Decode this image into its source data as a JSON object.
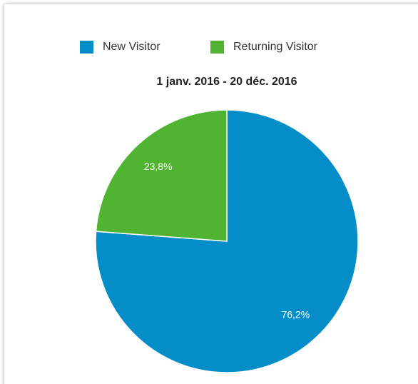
{
  "chart_data": {
    "type": "pie",
    "title": "1 janv. 2016 - 20 déc. 2016",
    "categories": [
      "New Visitor",
      "Returning Visitor"
    ],
    "values": [
      76.2,
      23.8
    ],
    "value_labels": [
      "76,2%",
      "23,8%"
    ],
    "colors": [
      "#058dc7",
      "#50b432"
    ],
    "legend": "top"
  }
}
